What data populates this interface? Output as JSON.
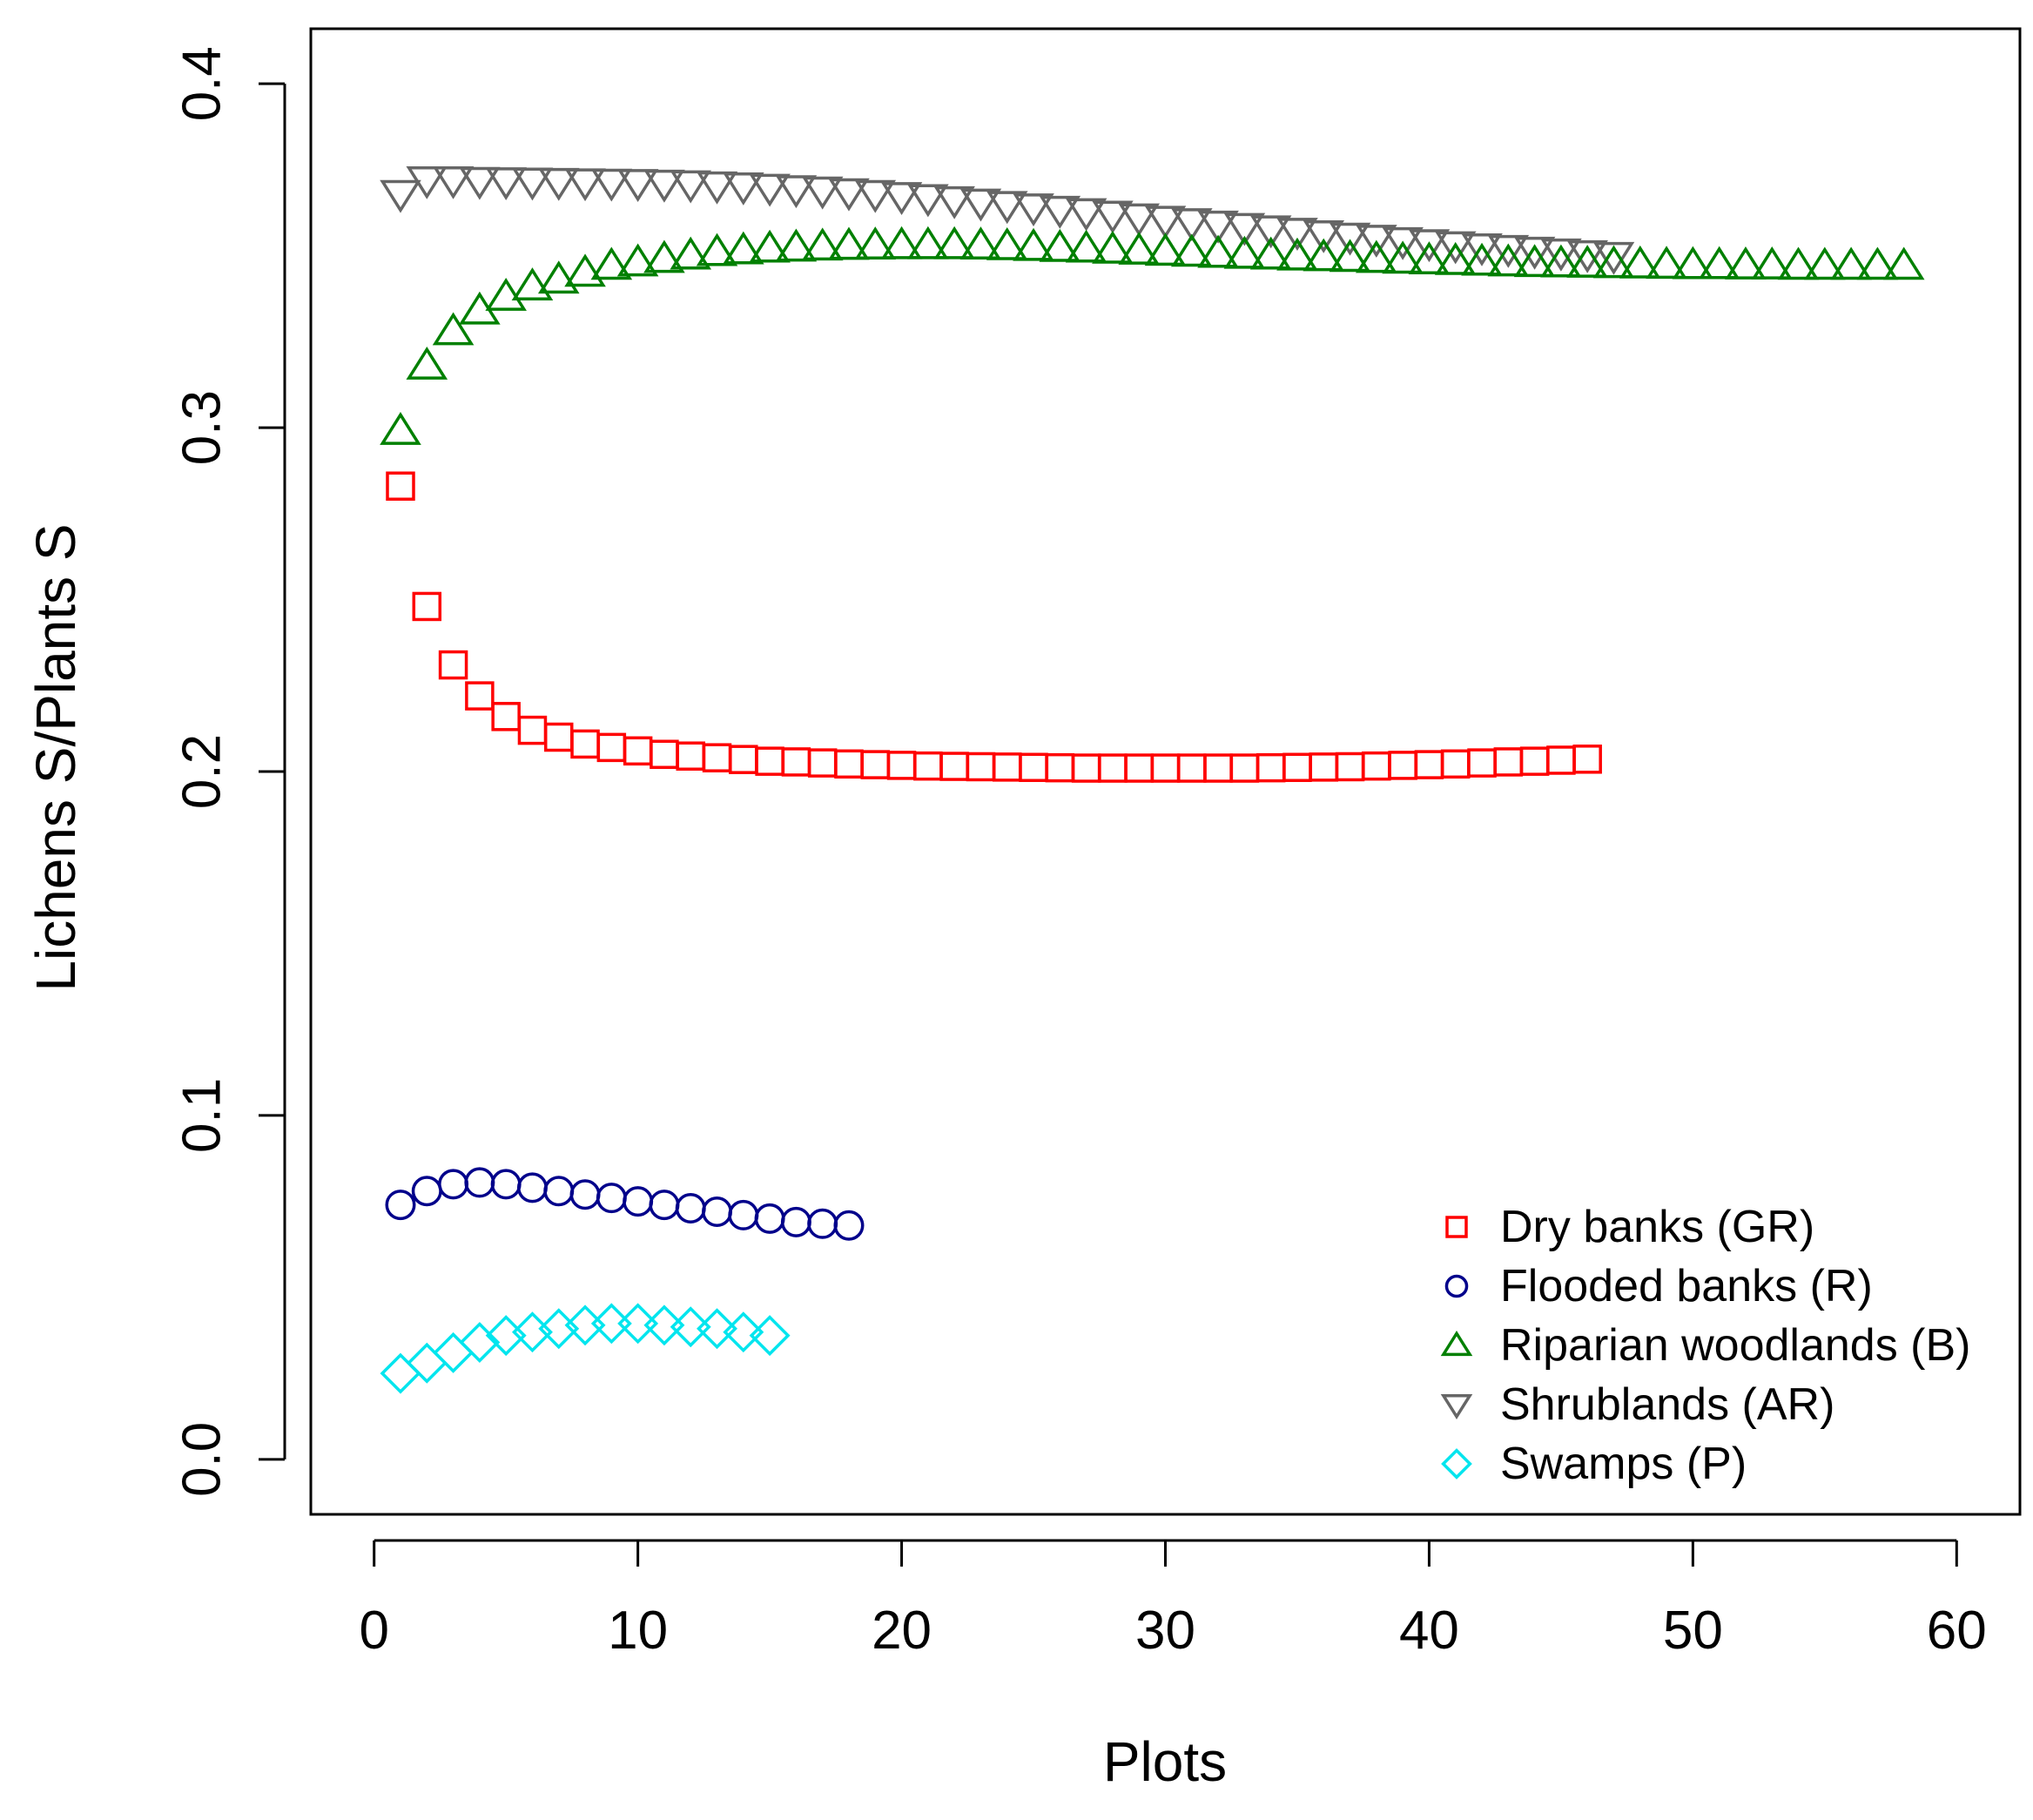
{
  "chart_data": {
    "type": "scatter",
    "xlabel": "Plots",
    "ylabel": "Lichens S/Plants S",
    "xlim": [
      -2.4,
      62.4
    ],
    "ylim": [
      -0.016,
      0.416
    ],
    "xticks": [
      "0",
      "10",
      "20",
      "30",
      "40",
      "50",
      "60"
    ],
    "yticks": [
      "0.0",
      "0.1",
      "0.2",
      "0.3",
      "0.4"
    ],
    "grid": false,
    "legend_position": "bottom-right",
    "series": [
      {
        "name": "Dry banks (GR)",
        "marker": "square",
        "color": "#ff0000",
        "x": [
          1,
          2,
          3,
          4,
          5,
          6,
          7,
          8,
          9,
          10,
          11,
          12,
          13,
          14,
          15,
          16,
          17,
          18,
          19,
          20,
          21,
          22,
          23,
          24,
          25,
          26,
          27,
          28,
          29,
          30,
          31,
          32,
          33,
          34,
          35,
          36,
          37,
          38,
          39,
          40,
          41,
          42,
          43,
          44,
          45,
          46
        ],
        "y": [
          0.283,
          0.248,
          0.231,
          0.222,
          0.216,
          0.212,
          0.21,
          0.208,
          0.207,
          0.206,
          0.205,
          0.2045,
          0.204,
          0.2035,
          0.203,
          0.2028,
          0.2025,
          0.2022,
          0.202,
          0.2018,
          0.2016,
          0.2015,
          0.2014,
          0.2013,
          0.2012,
          0.2011,
          0.201,
          0.201,
          0.201,
          0.201,
          0.201,
          0.201,
          0.201,
          0.2011,
          0.2012,
          0.2013,
          0.2014,
          0.2016,
          0.2018,
          0.202,
          0.2022,
          0.2025,
          0.2028,
          0.203,
          0.2033,
          0.2036
        ]
      },
      {
        "name": "Flooded banks (R)",
        "marker": "circle",
        "color": "#00008b",
        "x": [
          1,
          2,
          3,
          4,
          5,
          6,
          7,
          8,
          9,
          10,
          11,
          12,
          13,
          14,
          15,
          16,
          17,
          18
        ],
        "y": [
          0.074,
          0.078,
          0.08,
          0.0805,
          0.08,
          0.079,
          0.078,
          0.077,
          0.076,
          0.075,
          0.074,
          0.073,
          0.072,
          0.071,
          0.07,
          0.069,
          0.0685,
          0.068
        ]
      },
      {
        "name": "Riparian woodlands (B)",
        "marker": "triangle-up",
        "color": "#008000",
        "x": [
          1,
          2,
          3,
          4,
          5,
          6,
          7,
          8,
          9,
          10,
          11,
          12,
          13,
          14,
          15,
          16,
          17,
          18,
          19,
          20,
          21,
          22,
          23,
          24,
          25,
          26,
          27,
          28,
          29,
          30,
          31,
          32,
          33,
          34,
          35,
          36,
          37,
          38,
          39,
          40,
          41,
          42,
          43,
          44,
          45,
          46,
          47,
          48,
          49,
          50,
          51,
          52,
          53,
          54,
          55,
          56,
          57,
          58
        ],
        "y": [
          0.299,
          0.318,
          0.328,
          0.334,
          0.338,
          0.341,
          0.343,
          0.345,
          0.347,
          0.348,
          0.349,
          0.35,
          0.351,
          0.3515,
          0.352,
          0.3523,
          0.3526,
          0.3528,
          0.3529,
          0.353,
          0.353,
          0.353,
          0.3529,
          0.3527,
          0.3525,
          0.3522,
          0.352,
          0.3517,
          0.3514,
          0.3511,
          0.3508,
          0.3505,
          0.3502,
          0.35,
          0.3497,
          0.3495,
          0.3493,
          0.349,
          0.3488,
          0.3486,
          0.3484,
          0.3482,
          0.348,
          0.3478,
          0.3477,
          0.3476,
          0.3475,
          0.3474,
          0.3473,
          0.3472,
          0.3472,
          0.3471,
          0.3471,
          0.347,
          0.347,
          0.347,
          0.347,
          0.347
        ]
      },
      {
        "name": "Shrublands (AR)",
        "marker": "triangle-down",
        "color": "#666666",
        "x": [
          1,
          2,
          3,
          4,
          5,
          6,
          7,
          8,
          9,
          10,
          11,
          12,
          13,
          14,
          15,
          16,
          17,
          18,
          19,
          20,
          21,
          22,
          23,
          24,
          25,
          26,
          27,
          28,
          29,
          30,
          31,
          32,
          33,
          34,
          35,
          36,
          37,
          38,
          39,
          40,
          41,
          42,
          43,
          44,
          45,
          46,
          47
        ],
        "y": [
          0.368,
          0.372,
          0.372,
          0.3718,
          0.3717,
          0.3716,
          0.3715,
          0.3714,
          0.3713,
          0.3712,
          0.371,
          0.3708,
          0.3705,
          0.3702,
          0.3698,
          0.3694,
          0.369,
          0.3685,
          0.368,
          0.3674,
          0.3668,
          0.3662,
          0.3655,
          0.3648,
          0.3641,
          0.3634,
          0.3627,
          0.362,
          0.3612,
          0.3605,
          0.3598,
          0.3591,
          0.3584,
          0.3577,
          0.357,
          0.3563,
          0.3556,
          0.355,
          0.3543,
          0.3537,
          0.3531,
          0.3525,
          0.352,
          0.3515,
          0.351,
          0.3505,
          0.35
        ]
      },
      {
        "name": "Swamps (P)",
        "marker": "diamond",
        "color": "#00e5ee",
        "x": [
          1,
          2,
          3,
          4,
          5,
          6,
          7,
          8,
          9,
          10,
          11,
          12,
          13,
          14,
          15
        ],
        "y": [
          0.025,
          0.028,
          0.031,
          0.034,
          0.036,
          0.037,
          0.038,
          0.039,
          0.0395,
          0.0395,
          0.039,
          0.0385,
          0.038,
          0.037,
          0.036
        ]
      }
    ]
  }
}
